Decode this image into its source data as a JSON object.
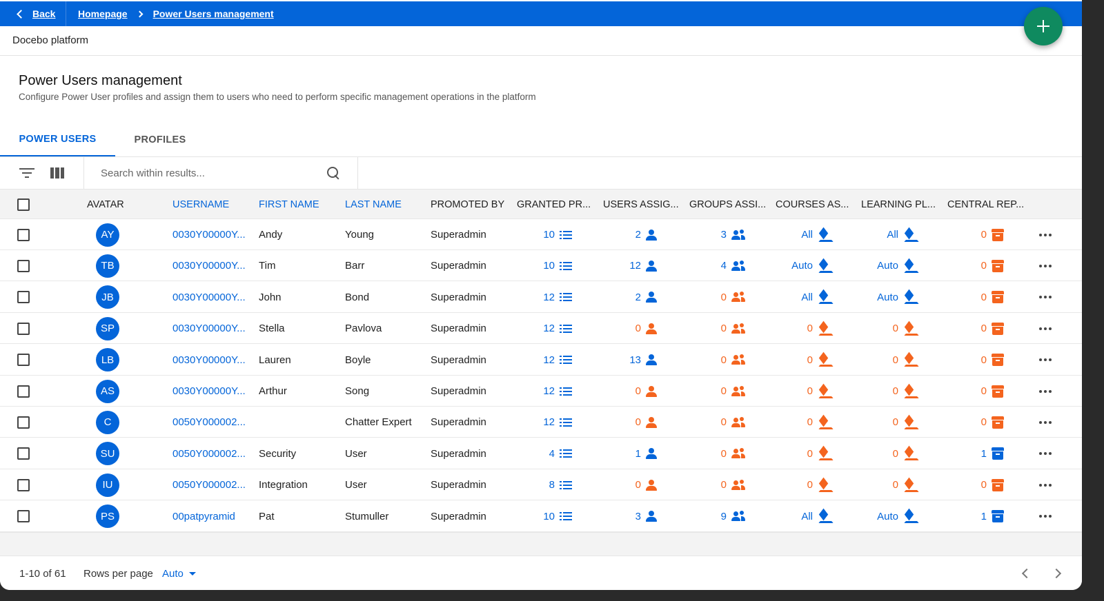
{
  "topbar": {
    "back_label": "Back",
    "breadcrumb_home": "Homepage",
    "breadcrumb_current": "Power Users management",
    "accent_color": "#0465d9"
  },
  "fab": {
    "icon": "plus-icon",
    "color": "#0f8a5f"
  },
  "platform_name": "Docebo platform",
  "page": {
    "title": "Power Users management",
    "subtitle": "Configure Power User profiles and assign them to users who need to perform specific management operations in the platform"
  },
  "tabs": [
    {
      "label": "POWER USERS",
      "active": true
    },
    {
      "label": "PROFILES",
      "active": false
    }
  ],
  "toolbar": {
    "search_placeholder": "Search within results...",
    "filter_icon": "filter-icon",
    "columns_icon": "columns-icon"
  },
  "columns": {
    "avatar": "AVATAR",
    "username": "USERNAME",
    "first_name": "FIRST NAME",
    "last_name": "LAST NAME",
    "promoted_by": "PROMOTED BY",
    "granted": "GRANTED PR...",
    "users": "USERS ASSIG...",
    "groups": "GROUPS ASSI...",
    "courses": "COURSES AS...",
    "plans": "LEARNING PL...",
    "central": "CENTRAL REP..."
  },
  "rows": [
    {
      "initials": "AY",
      "username": "0030Y00000Y...",
      "first": "Andy",
      "last": "Young",
      "promoted": "Superadmin",
      "granted": "10",
      "users": "2",
      "groups": "3",
      "courses": "All",
      "plans": "All",
      "central": "0"
    },
    {
      "initials": "TB",
      "username": "0030Y00000Y...",
      "first": "Tim",
      "last": "Barr",
      "promoted": "Superadmin",
      "granted": "10",
      "users": "12",
      "groups": "4",
      "courses": "Auto",
      "plans": "Auto",
      "central": "0"
    },
    {
      "initials": "JB",
      "username": "0030Y00000Y...",
      "first": "John",
      "last": "Bond",
      "promoted": "Superadmin",
      "granted": "12",
      "users": "2",
      "groups": "0",
      "courses": "All",
      "plans": "Auto",
      "central": "0"
    },
    {
      "initials": "SP",
      "username": "0030Y00000Y...",
      "first": "Stella",
      "last": "Pavlova",
      "promoted": "Superadmin",
      "granted": "12",
      "users": "0",
      "groups": "0",
      "courses": "0",
      "plans": "0",
      "central": "0"
    },
    {
      "initials": "LB",
      "username": "0030Y00000Y...",
      "first": "Lauren",
      "last": "Boyle",
      "promoted": "Superadmin",
      "granted": "12",
      "users": "13",
      "groups": "0",
      "courses": "0",
      "plans": "0",
      "central": "0"
    },
    {
      "initials": "AS",
      "username": "0030Y00000Y...",
      "first": "Arthur",
      "last": "Song",
      "promoted": "Superadmin",
      "granted": "12",
      "users": "0",
      "groups": "0",
      "courses": "0",
      "plans": "0",
      "central": "0"
    },
    {
      "initials": "C",
      "username": "0050Y000002...",
      "first": "",
      "last": "Chatter Expert",
      "promoted": "Superadmin",
      "granted": "12",
      "users": "0",
      "groups": "0",
      "courses": "0",
      "plans": "0",
      "central": "0"
    },
    {
      "initials": "SU",
      "username": "0050Y000002...",
      "first": "Security",
      "last": "User",
      "promoted": "Superadmin",
      "granted": "4",
      "users": "1",
      "groups": "0",
      "courses": "0",
      "plans": "0",
      "central": "1"
    },
    {
      "initials": "IU",
      "username": "0050Y000002...",
      "first": "Integration",
      "last": "User",
      "promoted": "Superadmin",
      "granted": "8",
      "users": "0",
      "groups": "0",
      "courses": "0",
      "plans": "0",
      "central": "0"
    },
    {
      "initials": "PS",
      "username": "00patpyramid",
      "first": "Pat",
      "last": "Stumuller",
      "promoted": "Superadmin",
      "granted": "10",
      "users": "3",
      "groups": "9",
      "courses": "All",
      "plans": "Auto",
      "central": "1"
    }
  ],
  "colors": {
    "positive": "#0465d9",
    "zero": "#f4641e"
  },
  "footer": {
    "range": "1-10 of 61",
    "rows_per_page_label": "Rows per page",
    "rows_per_page_value": "Auto"
  }
}
